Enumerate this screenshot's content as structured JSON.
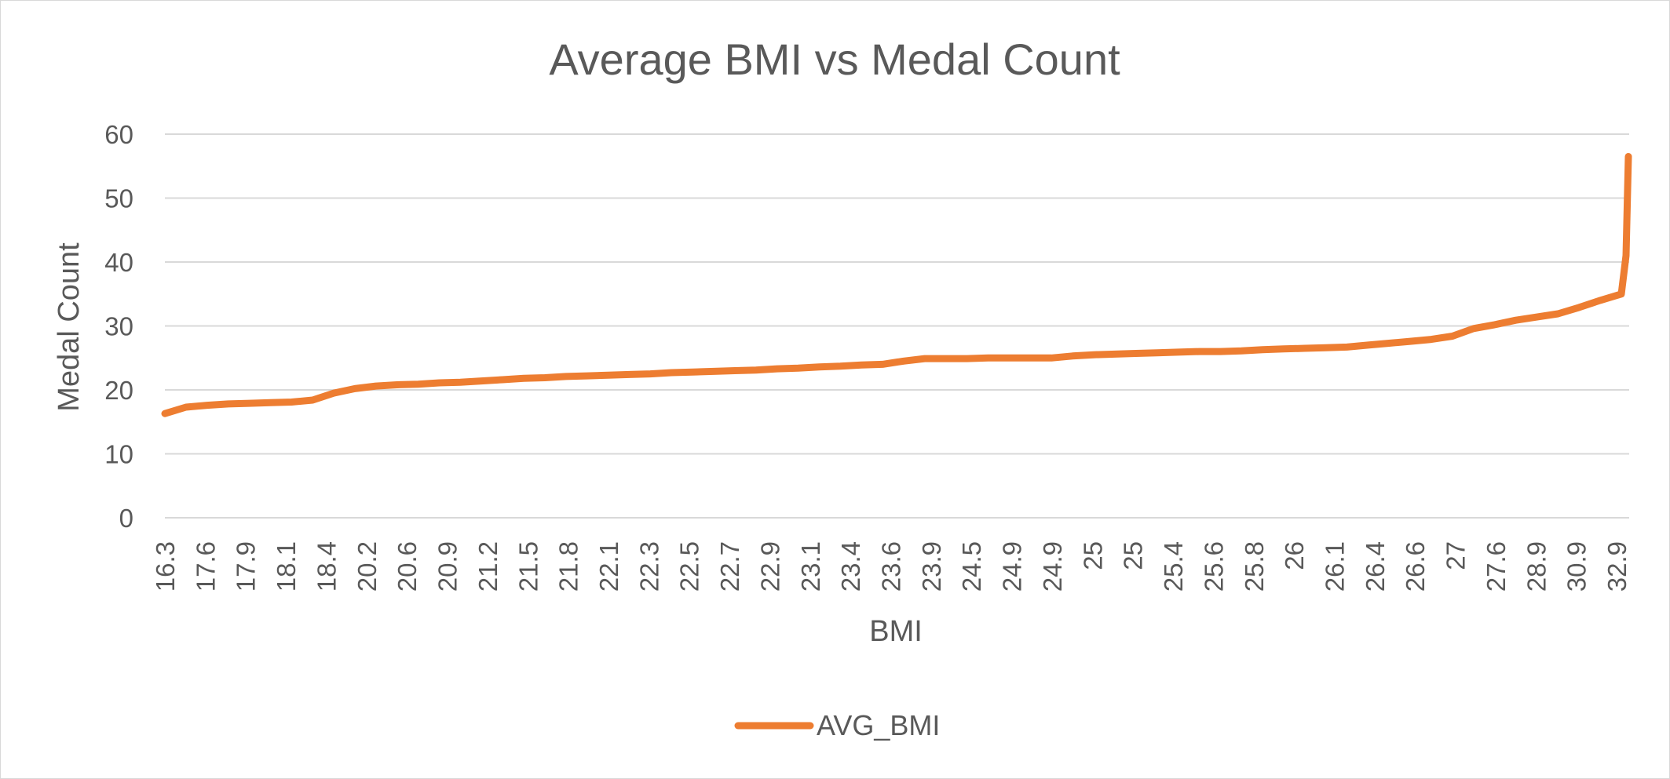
{
  "chart_data": {
    "type": "line",
    "title": "Average BMI vs Medal Count",
    "xlabel": "BMI",
    "ylabel": "Medal Count",
    "ylim": [
      0,
      60
    ],
    "yticks": [
      "0",
      "10",
      "20",
      "30",
      "40",
      "50",
      "60"
    ],
    "grid": true,
    "legend_position": "bottom",
    "x_tick_labels": [
      "16.3",
      "17.6",
      "17.9",
      "18.1",
      "18.4",
      "20.2",
      "20.6",
      "20.9",
      "21.2",
      "21.5",
      "21.8",
      "22.1",
      "22.3",
      "22.5",
      "22.7",
      "22.9",
      "23.1",
      "23.4",
      "23.6",
      "23.9",
      "24.5",
      "24.9",
      "24.9",
      "25",
      "25",
      "25.4",
      "25.6",
      "25.8",
      "26",
      "26.1",
      "26.4",
      "26.6",
      "27",
      "27.6",
      "28.9",
      "30.9",
      "32.9"
    ],
    "series": [
      {
        "name": "AVG_BMI",
        "color": "#ED7D31",
        "y": [
          16.3,
          17.3,
          17.6,
          17.8,
          17.9,
          18.0,
          18.1,
          18.4,
          19.5,
          20.2,
          20.6,
          20.8,
          20.9,
          21.1,
          21.2,
          21.4,
          21.6,
          21.8,
          21.9,
          22.1,
          22.2,
          22.3,
          22.4,
          22.5,
          22.7,
          22.8,
          22.9,
          23.0,
          23.1,
          23.3,
          23.4,
          23.6,
          23.7,
          23.9,
          24.0,
          24.5,
          24.9,
          24.9,
          24.9,
          25.0,
          25.0,
          25.0,
          25.0,
          25.3,
          25.5,
          25.6,
          25.7,
          25.8,
          25.9,
          26.0,
          26.0,
          26.1,
          26.3,
          26.4,
          26.5,
          26.6,
          26.7,
          27.0,
          27.3,
          27.6,
          27.9,
          28.4,
          29.6,
          30.2,
          30.9,
          31.4,
          31.9,
          32.9,
          34.0,
          35.0,
          38.0,
          41.0,
          56.5
        ]
      }
    ]
  }
}
